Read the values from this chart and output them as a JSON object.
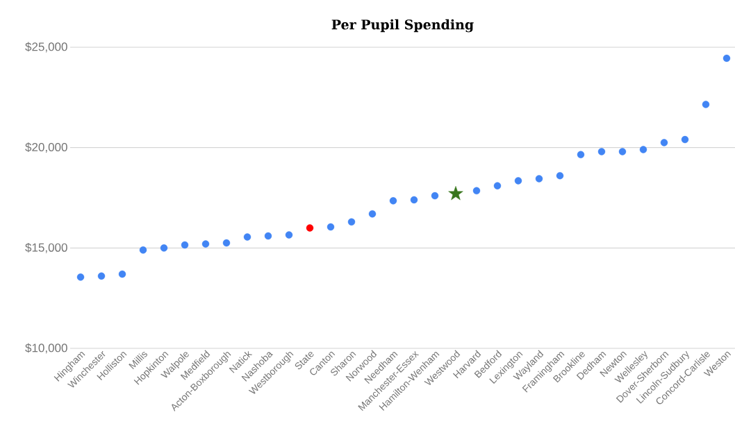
{
  "chart_data": {
    "type": "scatter",
    "title": "Per Pupil Spending",
    "categories": [
      "Hingham",
      "Winchester",
      "Holliston",
      "Millis",
      "Hopkinton",
      "Walpole",
      "Medfield",
      "Acton-Boxborough",
      "Natick",
      "Nashoba",
      "Westborough",
      "State",
      "Canton",
      "Sharon",
      "Norwood",
      "Needham",
      "Manchester-Essex",
      "Hamilton-Wenham",
      "Westwood",
      "Harvard",
      "Bedford",
      "Lexington",
      "Wayland",
      "Framingham",
      "Brookline",
      "Dedham",
      "Newton",
      "Wellesley",
      "Dover-Sherborn",
      "Lincoln-Sudbury",
      "Concord-Carlisle",
      "Weston"
    ],
    "series": [
      {
        "color": "#4285f4",
        "marker": "circle",
        "values": [
          13550,
          13600,
          13700,
          14900,
          15000,
          15150,
          15200,
          15250,
          15550,
          15600,
          15650,
          null,
          16050,
          16300,
          16700,
          17350,
          17400,
          17600,
          null,
          17850,
          18100,
          18350,
          18450,
          18600,
          19650,
          19800,
          19800,
          19900,
          20250,
          20400,
          22150,
          24450
        ]
      },
      {
        "color": "#ff0000",
        "marker": "circle",
        "values": [
          null,
          null,
          null,
          null,
          null,
          null,
          null,
          null,
          null,
          null,
          null,
          16000,
          null,
          null,
          null,
          null,
          null,
          null,
          null,
          null,
          null,
          null,
          null,
          null,
          null,
          null,
          null,
          null,
          null,
          null,
          null,
          null
        ]
      },
      {
        "color": "#38761d",
        "marker": "star",
        "values": [
          null,
          null,
          null,
          null,
          null,
          null,
          null,
          null,
          null,
          null,
          null,
          null,
          null,
          null,
          null,
          null,
          null,
          null,
          17700,
          null,
          null,
          null,
          null,
          null,
          null,
          null,
          null,
          null,
          null,
          null,
          null,
          null
        ]
      }
    ],
    "ylim": [
      10000,
      25000
    ],
    "yticks": [
      {
        "value": 10000,
        "label": "$10,000"
      },
      {
        "value": 15000,
        "label": "$15,000"
      },
      {
        "value": 20000,
        "label": "$20,000"
      },
      {
        "value": 25000,
        "label": "$25,000"
      }
    ],
    "grid": "y"
  }
}
